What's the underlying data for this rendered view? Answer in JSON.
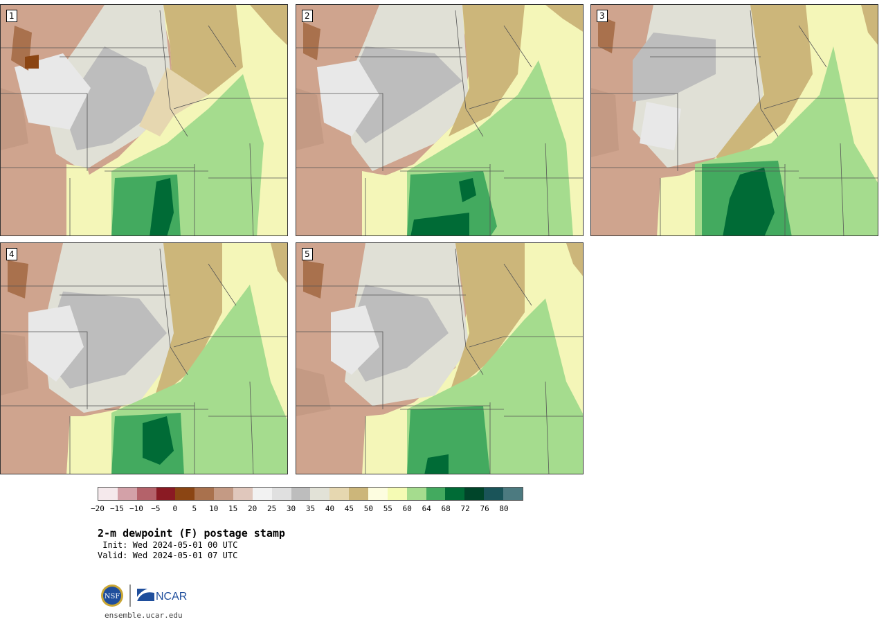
{
  "panels": [
    {
      "label": "1"
    },
    {
      "label": "2"
    },
    {
      "label": "3"
    },
    {
      "label": "4"
    },
    {
      "label": "5"
    }
  ],
  "colorbar": {
    "colors": [
      "#f5e9ec",
      "#d3a1a8",
      "#b4626a",
      "#8a1a23",
      "#8b4513",
      "#a9714d",
      "#c49a84",
      "#e0c7bc",
      "#f2f2f2",
      "#e0e0e0",
      "#bdbdbd",
      "#e2e2d7",
      "#e6d7b0",
      "#ccb67a",
      "#fdfde0",
      "#f5fbb4",
      "#a5dc8e",
      "#43aa5f",
      "#006b36",
      "#00452a",
      "#1a5459",
      "#4c7a80"
    ],
    "tick_labels": [
      "−20",
      "−15",
      "−10",
      "−5",
      "0",
      "5",
      "10",
      "15",
      "20",
      "25",
      "30",
      "35",
      "40",
      "45",
      "50",
      "55",
      "60",
      "64",
      "68",
      "72",
      "76",
      "80"
    ]
  },
  "title": "2-m dewpoint (F) postage stamp",
  "init_text": " Init: Wed 2024-05-01 00 UTC",
  "valid_text": "Valid: Wed 2024-05-01 07 UTC",
  "logo": {
    "nsf": "NSF",
    "ncar": "NCAR"
  },
  "footer": "ensemble.ucar.edu"
}
